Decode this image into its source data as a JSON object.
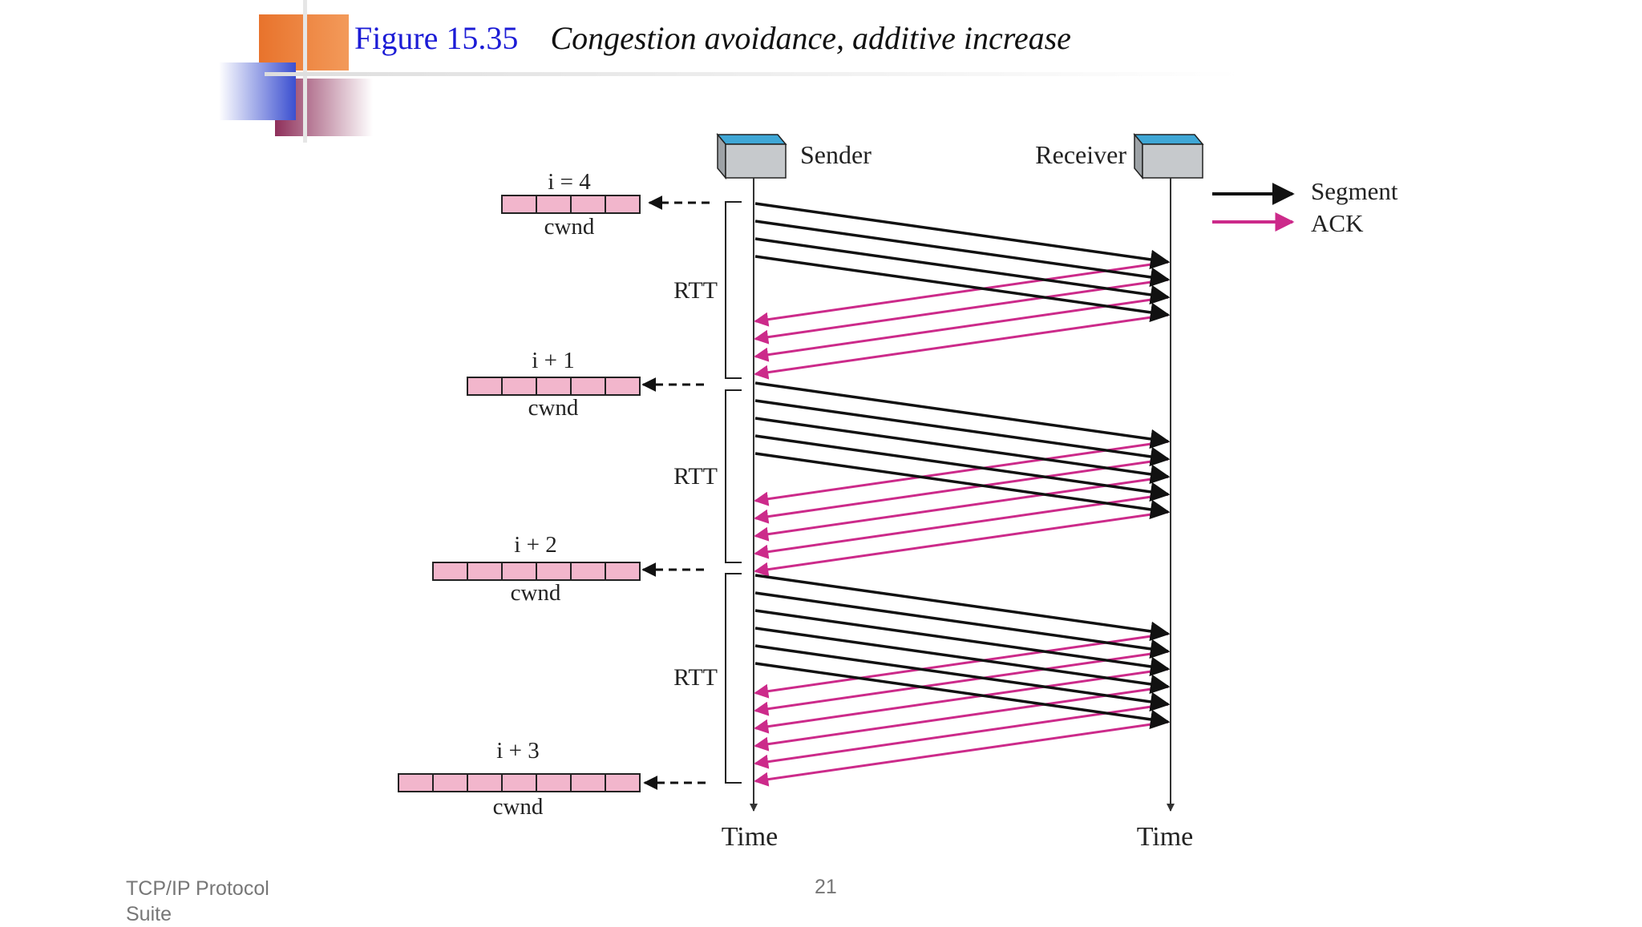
{
  "figure": {
    "number": "Figure 15.35",
    "caption": "Congestion avoidance, additive increase"
  },
  "diagram": {
    "sender_label": "Sender",
    "receiver_label": "Receiver",
    "time_label": "Time",
    "rtt_label": "RTT",
    "cwnd_label": "cwnd",
    "legend": [
      {
        "label": "Segment",
        "color": "#111111"
      },
      {
        "label": "ACK",
        "color": "#cc2a8a"
      }
    ],
    "rounds": [
      {
        "window_label": "i = 4",
        "cwnd_size": 4
      },
      {
        "window_label": "i + 1",
        "cwnd_size": 5
      },
      {
        "window_label": "i + 2",
        "cwnd_size": 6
      },
      {
        "window_label": "i + 3",
        "cwnd_size": 7
      }
    ],
    "colors": {
      "segment": "#111111",
      "ack": "#cc2a8a",
      "cwnd_fill": "#f2b6cc",
      "node_top": "#3fa7d6",
      "node_body": "#c6c9cc"
    }
  },
  "footer": {
    "source": "TCP/IP Protocol Suite",
    "page_number": "21"
  }
}
